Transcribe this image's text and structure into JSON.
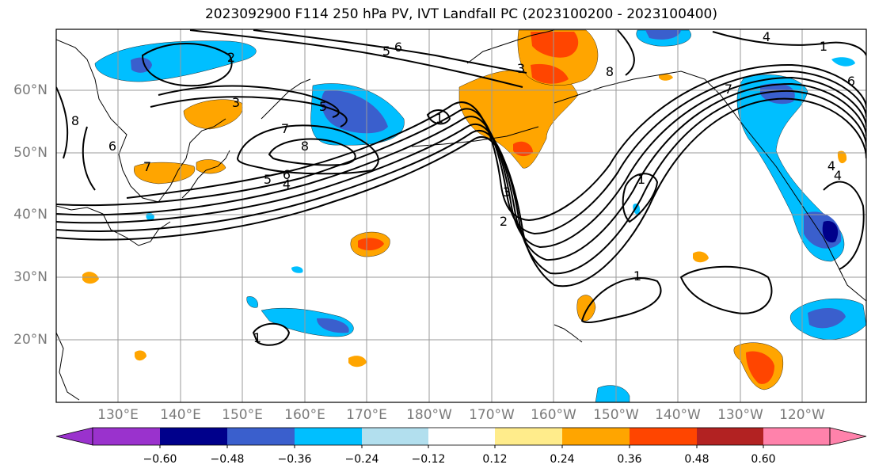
{
  "title": "2023092900 F114 250 hPa PV, IVT Landfall PC (2023100200 - 2023100400)",
  "lat_labels": [
    "60°N",
    "50°N",
    "40°N",
    "30°N",
    "20°N"
  ],
  "lon_labels": [
    "130°E",
    "140°E",
    "150°E",
    "160°E",
    "170°E",
    "180°W",
    "170°W",
    "160°W",
    "150°W",
    "140°W",
    "130°W",
    "120°W"
  ],
  "colorbar": {
    "ticks": [
      "−0.60",
      "−0.48",
      "−0.36",
      "−0.24",
      "−0.12",
      "0.12",
      "0.24",
      "0.36",
      "0.48",
      "0.60"
    ],
    "colors": [
      "#9a32cd",
      "#00008b",
      "#3a5fcd",
      "#00bfff",
      "#b2dfee",
      "#ffffff",
      "#ffec8b",
      "#ffa500",
      "#ff4500",
      "#b22222",
      "#ff82ab"
    ]
  },
  "contour_labels": [
    "2",
    "5",
    "6",
    "4",
    "3",
    "8",
    "7",
    "1",
    "6",
    "7",
    "8",
    "3",
    "5",
    "4",
    "6",
    "1",
    "3",
    "2",
    "8",
    "4",
    "1",
    "1",
    "1",
    "4",
    "6",
    "5",
    "7",
    "8"
  ]
}
